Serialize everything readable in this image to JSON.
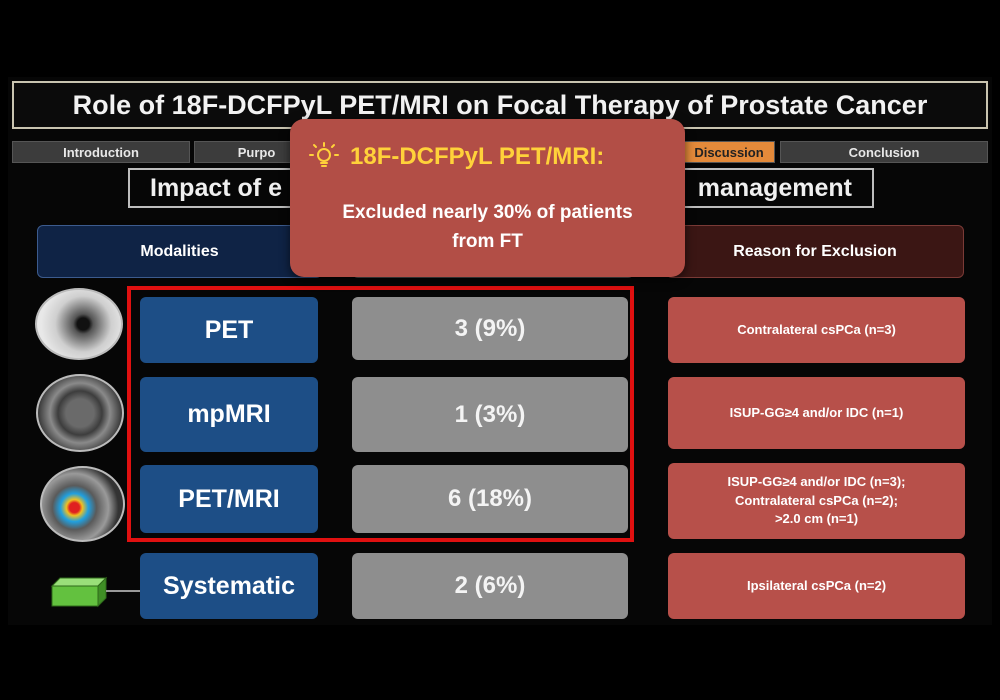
{
  "slide": {
    "title": "Role of 18F-DCFPyL PET/MRI on Focal Therapy of Prostate Cancer",
    "nav_tabs": [
      {
        "label": "Introduction",
        "active": false
      },
      {
        "label": "Purpo",
        "active": false
      },
      {
        "label": "Discussion",
        "active": true
      },
      {
        "label": "Conclusion",
        "active": false
      }
    ],
    "subtitle_left": "Impact of e",
    "subtitle_right": "management",
    "headers": {
      "modalities": "Modalities",
      "reason": "Reason for Exclusion"
    },
    "rows": [
      {
        "modality": "PET",
        "value": "3 (9%)",
        "reason": "Contralateral csPCa (n=3)"
      },
      {
        "modality": "mpMRI",
        "value": "1 (3%)",
        "reason": "ISUP-GG≥4 and/or IDC (n=1)"
      },
      {
        "modality": "PET/MRI",
        "value": "6 (18%)",
        "reason_lines": [
          "ISUP-GG≥4 and/or IDC (n=3);",
          "Contralateral csPCa (n=2);",
          ">2.0 cm (n=1)"
        ]
      },
      {
        "modality": "Systematic",
        "value": "2 (6%)",
        "reason": "Ipsilateral csPCa (n=2)"
      }
    ],
    "popup": {
      "icon": "lightbulb-icon",
      "title": "18F-DCFPyL PET/MRI:",
      "line1": "Excluded nearly 30% of patients",
      "line2": "from FT"
    },
    "colors": {
      "accent_orange": "#e48a3a",
      "modality_blue": "#1d4e86",
      "reason_red": "#b7504a",
      "highlight_red": "#e01010",
      "popup_title_yellow": "#ffd23a"
    }
  }
}
